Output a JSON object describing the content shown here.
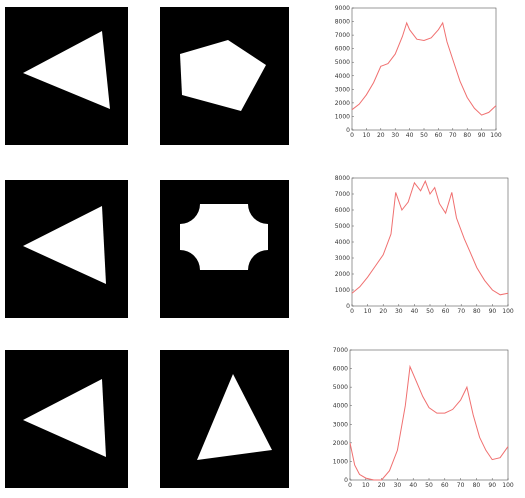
{
  "colors": {
    "panel_background": "#000000",
    "shape_fill": "#ffffff",
    "curve": "#f07070",
    "axis": "#555555"
  },
  "shape_names": [
    [
      "triangle",
      "pentagon"
    ],
    [
      "triangle",
      "rounded-cross"
    ],
    [
      "triangle",
      "triangle"
    ]
  ],
  "chart_data": [
    {
      "type": "line",
      "title": "",
      "xlabel": "",
      "ylabel": "",
      "xlim": [
        0,
        100
      ],
      "ylim": [
        0,
        9000
      ],
      "xticks": [
        0,
        10,
        20,
        30,
        40,
        50,
        60,
        70,
        80,
        90,
        100
      ],
      "yticks": [
        0,
        1000,
        2000,
        3000,
        4000,
        5000,
        6000,
        7000,
        8000,
        9000
      ],
      "grid": false,
      "series": [
        {
          "x": [
            0,
            5,
            10,
            15,
            20,
            25,
            30,
            35,
            38,
            40,
            45,
            50,
            55,
            60,
            63,
            66,
            70,
            75,
            80,
            85,
            90,
            95,
            100
          ],
          "values": [
            1500,
            1900,
            2600,
            3500,
            4700,
            4900,
            5600,
            6900,
            7900,
            7400,
            6700,
            6600,
            6800,
            7400,
            7900,
            6500,
            5200,
            3600,
            2400,
            1600,
            1100,
            1300,
            1800
          ]
        }
      ]
    },
    {
      "type": "line",
      "title": "",
      "xlabel": "",
      "ylabel": "",
      "xlim": [
        0,
        100
      ],
      "ylim": [
        0,
        8000
      ],
      "xticks": [
        0,
        10,
        20,
        30,
        40,
        50,
        60,
        70,
        80,
        90,
        100
      ],
      "yticks": [
        0,
        1000,
        2000,
        3000,
        4000,
        5000,
        6000,
        7000,
        8000
      ],
      "grid": false,
      "series": [
        {
          "x": [
            0,
            5,
            10,
            15,
            20,
            25,
            28,
            32,
            36,
            40,
            44,
            47,
            50,
            53,
            56,
            60,
            64,
            67,
            72,
            76,
            80,
            85,
            90,
            95,
            100
          ],
          "values": [
            800,
            1200,
            1800,
            2500,
            3200,
            4500,
            7100,
            6000,
            6500,
            7700,
            7200,
            7800,
            7000,
            7400,
            6400,
            5800,
            7100,
            5500,
            4200,
            3300,
            2400,
            1600,
            1000,
            700,
            800
          ]
        }
      ]
    },
    {
      "type": "line",
      "title": "",
      "xlabel": "",
      "ylabel": "",
      "xlim": [
        0,
        100
      ],
      "ylim": [
        0,
        7000
      ],
      "xticks": [
        0,
        10,
        20,
        30,
        40,
        50,
        60,
        70,
        80,
        90,
        100
      ],
      "yticks": [
        0,
        1000,
        2000,
        3000,
        4000,
        5000,
        6000,
        7000
      ],
      "grid": false,
      "series": [
        {
          "x": [
            0,
            3,
            6,
            10,
            15,
            20,
            25,
            30,
            35,
            38,
            42,
            46,
            50,
            55,
            60,
            65,
            70,
            74,
            78,
            82,
            86,
            90,
            95,
            100
          ],
          "values": [
            2000,
            800,
            300,
            100,
            0,
            0,
            500,
            1600,
            4000,
            6100,
            5300,
            4500,
            3900,
            3600,
            3600,
            3800,
            4300,
            5000,
            3500,
            2300,
            1600,
            1100,
            1200,
            1800
          ]
        }
      ]
    }
  ]
}
